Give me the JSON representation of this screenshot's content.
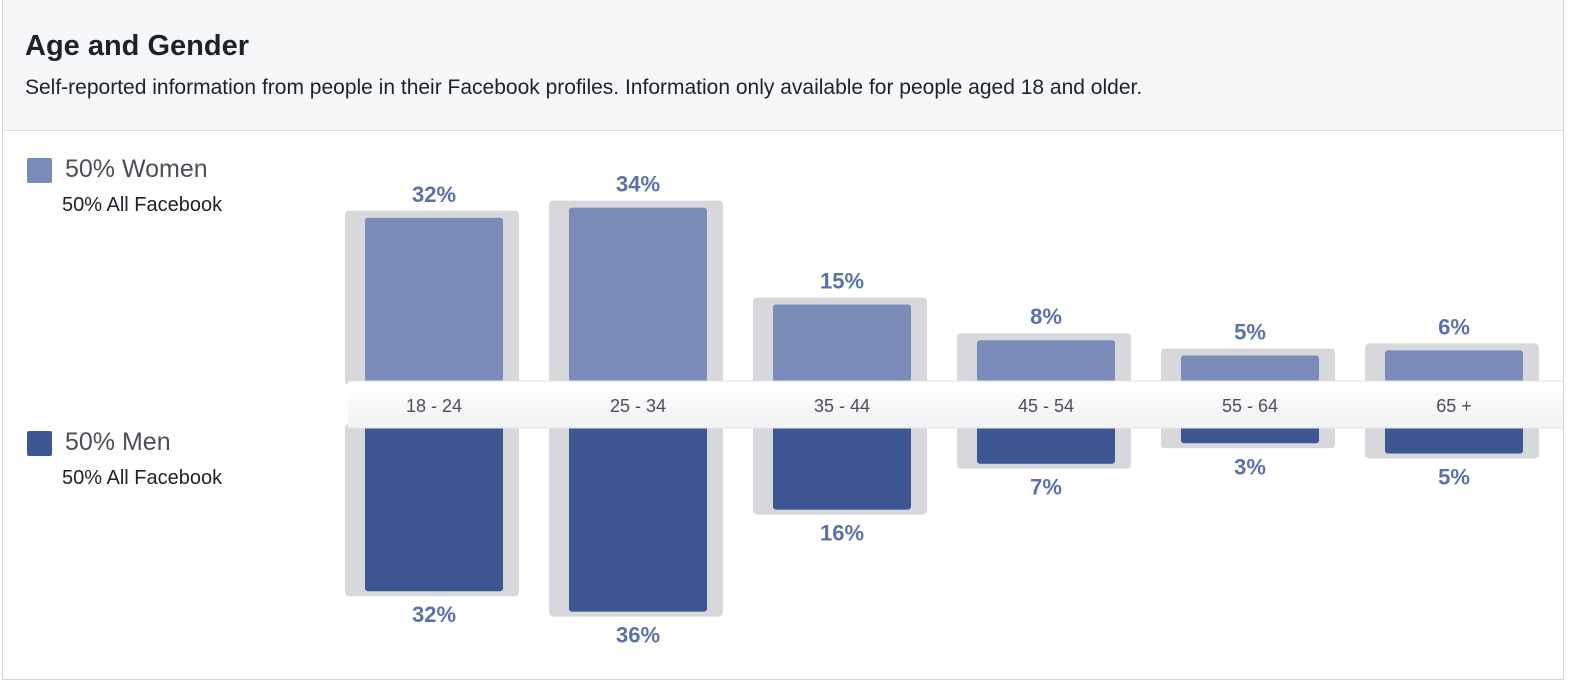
{
  "header": {
    "title": "Age and Gender",
    "subtitle": "Self-reported information from people in their Facebook profiles. Information only available for people aged 18 and older."
  },
  "legend": {
    "women": {
      "label": "50% Women",
      "sub": "50% All Facebook"
    },
    "men": {
      "label": "50% Men",
      "sub": "50% All Facebook"
    }
  },
  "colors": {
    "women": "#7a8bb9",
    "men": "#3b5690",
    "benchmark": "#d6d8dc",
    "value_label": "#5b72a9",
    "category_label": "#4b4f56"
  },
  "chart_data": {
    "type": "bar",
    "title": "Age and Gender",
    "categories": [
      "18 - 24",
      "25 - 34",
      "35 - 44",
      "45 - 54",
      "55 - 64",
      "65 +"
    ],
    "series": [
      {
        "name": "Women",
        "direction": "up",
        "values": [
          32,
          34,
          15,
          8,
          5,
          6
        ],
        "labels": [
          "32%",
          "34%",
          "15%",
          "8%",
          "5%",
          "6%"
        ]
      },
      {
        "name": "Men",
        "direction": "down",
        "values": [
          32,
          36,
          16,
          7,
          3,
          5
        ],
        "labels": [
          "32%",
          "36%",
          "16%",
          "7%",
          "3%",
          "5%"
        ]
      }
    ],
    "benchmark": {
      "women": [
        32,
        34,
        15,
        8,
        5,
        6
      ],
      "men": [
        32,
        36,
        16,
        7,
        3,
        5
      ]
    },
    "unit": "%",
    "ylim": [
      0,
      36
    ],
    "grid": false
  }
}
